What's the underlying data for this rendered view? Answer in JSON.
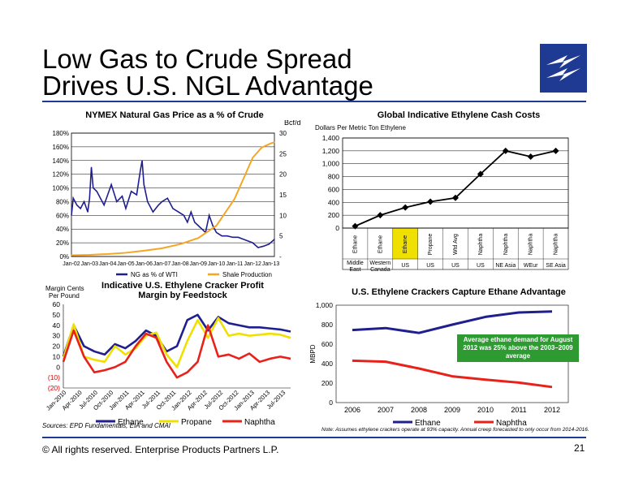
{
  "page": {
    "title_line1": "Low Gas to Crude Spread",
    "title_line2": "Drives U.S. NGL Advantage",
    "sources": "Sources: EPD Fundamentals, EIA and CMAI",
    "note": "Note: Assumes ethylene crackers operate at 93% capacity. Annual creep forecasted to only occur from 2014-2016.",
    "footer": "©  All rights reserved. Enterprise Products Partners L.P.",
    "page_number": "21",
    "logo_icon": "lightning-bolt-logo-icon",
    "colors": {
      "brand": "#1f3a93",
      "navy": "#1f1f8f",
      "orange": "#f5a623",
      "yellow": "#f0e000",
      "red": "#e8221a",
      "green": "#2e9a32"
    }
  },
  "chart_data": [
    {
      "id": "gas_crude",
      "type": "line",
      "title": "NYMEX Natural Gas Price as a % of Crude",
      "y2label": "Bcf/d",
      "x_ticks": [
        "Jan-02",
        "Jan-03",
        "Jan-04",
        "Jan-05",
        "Jan-06",
        "Jan-07",
        "Jan-08",
        "Jan-09",
        "Jan-10",
        "Jan-11",
        "Jan-12",
        "Jan-13"
      ],
      "y_ticks": [
        "0%",
        "20%",
        "40%",
        "60%",
        "80%",
        "100%",
        "120%",
        "140%",
        "160%",
        "180%"
      ],
      "y2_ticks": [
        "-",
        "5",
        "10",
        "15",
        "20",
        "25",
        "30"
      ],
      "ylim": [
        0,
        180
      ],
      "y2lim": [
        0,
        30
      ],
      "series": [
        {
          "name": "NG as % of WTI",
          "axis": "left",
          "x": [
            2002.0,
            2002.1,
            2002.3,
            2002.5,
            2002.7,
            2002.9,
            2003.0,
            2003.1,
            2003.2,
            2003.4,
            2003.6,
            2003.8,
            2004.0,
            2004.2,
            2004.5,
            2004.8,
            2005.0,
            2005.3,
            2005.6,
            2005.8,
            2005.9,
            2006.0,
            2006.2,
            2006.5,
            2006.8,
            2007.0,
            2007.3,
            2007.6,
            2007.9,
            2008.2,
            2008.4,
            2008.6,
            2008.8,
            2009.0,
            2009.2,
            2009.4,
            2009.6,
            2009.8,
            2010.0,
            2010.3,
            2010.6,
            2010.9,
            2011.2,
            2011.5,
            2011.8,
            2012.0,
            2012.3,
            2012.6,
            2012.9,
            2013.2
          ],
          "values": [
            60,
            85,
            75,
            70,
            80,
            65,
            85,
            130,
            100,
            95,
            85,
            75,
            90,
            105,
            80,
            88,
            70,
            95,
            90,
            125,
            140,
            105,
            80,
            65,
            75,
            80,
            85,
            70,
            65,
            60,
            50,
            65,
            50,
            45,
            40,
            35,
            60,
            45,
            35,
            30,
            30,
            28,
            28,
            25,
            22,
            20,
            13,
            15,
            18,
            25
          ]
        },
        {
          "name": "Shale Production",
          "axis": "right",
          "x": [
            2002,
            2003,
            2004,
            2005,
            2006,
            2007,
            2008,
            2009,
            2010,
            2011,
            2011.5,
            2012,
            2012.5,
            2013,
            2013.2
          ],
          "values": [
            0.3,
            0.4,
            0.6,
            0.9,
            1.4,
            2.0,
            3.0,
            4.5,
            7.5,
            14,
            19,
            24,
            26.5,
            27.5,
            27.8
          ]
        }
      ],
      "legend": "bottom"
    },
    {
      "id": "ethylene_costs",
      "type": "line",
      "title": "Global Indicative Ethylene Cash Costs",
      "ylabel": "Dollars Per Metric Ton Ethylene",
      "y_ticks": [
        "0",
        "200",
        "400",
        "600",
        "800",
        "1,000",
        "1,200",
        "1,400"
      ],
      "ylim": [
        0,
        1400
      ],
      "categories": [
        "Ethane",
        "Ethane",
        "Ethane",
        "Propane",
        "Wtd Avg",
        "Naphtha",
        "Naphtha",
        "Naphtha",
        "Naphtha"
      ],
      "regions": [
        "Middle East",
        "Western Canada",
        "US",
        "US",
        "US",
        "US",
        "NE Asia",
        "WEur",
        "SE Asia"
      ],
      "highlight_index": 2,
      "values": [
        30,
        200,
        320,
        410,
        470,
        840,
        1200,
        1110,
        1200
      ]
    },
    {
      "id": "cracker_margin",
      "type": "line",
      "title": "Indicative U.S. Ethylene Cracker Profit Margin by Feedstock",
      "ylabel": "Margin Cents Per Pound",
      "y_ticks": [
        "(20)",
        "(10)",
        "0",
        "10",
        "20",
        "30",
        "40",
        "50",
        "60"
      ],
      "ylim": [
        -20,
        60
      ],
      "x_ticks": [
        "Jan-2010",
        "Apr-2010",
        "Jul-2010",
        "Oct-2010",
        "Jan-2011",
        "Apr-2011",
        "Jul-2011",
        "Oct-2011",
        "Jan-2012",
        "Apr-2012",
        "Jul-2012",
        "Oct-2012",
        "Jan-2013",
        "Apr-2013",
        "Jul-2013"
      ],
      "series": [
        {
          "name": "Ethane",
          "values": [
            10,
            40,
            20,
            15,
            12,
            22,
            18,
            25,
            35,
            30,
            15,
            20,
            45,
            50,
            35,
            48,
            42,
            40,
            38,
            38,
            37,
            36,
            34
          ]
        },
        {
          "name": "Propane",
          "values": [
            8,
            41,
            10,
            7,
            5,
            20,
            12,
            18,
            30,
            33,
            12,
            0,
            25,
            45,
            28,
            47,
            30,
            32,
            30,
            31,
            32,
            31,
            28
          ]
        },
        {
          "name": "Naphtha",
          "values": [
            5,
            35,
            10,
            -5,
            -3,
            0,
            5,
            20,
            32,
            28,
            5,
            -10,
            -5,
            5,
            40,
            10,
            12,
            8,
            13,
            5,
            8,
            10,
            8
          ]
        }
      ],
      "legend": "bottom"
    },
    {
      "id": "cracker_capture",
      "type": "line",
      "title": "U.S. Ethylene Crackers Capture Ethane Advantage",
      "ylabel": "MBPD",
      "categories": [
        "2006",
        "2007",
        "2008",
        "2009",
        "2010",
        "2011",
        "2012"
      ],
      "y_ticks": [
        "0",
        "200",
        "400",
        "600",
        "800",
        "1,000"
      ],
      "ylim": [
        0,
        1000
      ],
      "series": [
        {
          "name": "Ethane",
          "values": [
            745,
            765,
            715,
            800,
            880,
            925,
            935
          ]
        },
        {
          "name": "Naphtha",
          "values": [
            430,
            420,
            350,
            270,
            235,
            205,
            160
          ]
        }
      ],
      "annotation": "Average ethane demand for August 2012 was 25% above the 2003–2009 average",
      "legend": "bottom"
    }
  ]
}
